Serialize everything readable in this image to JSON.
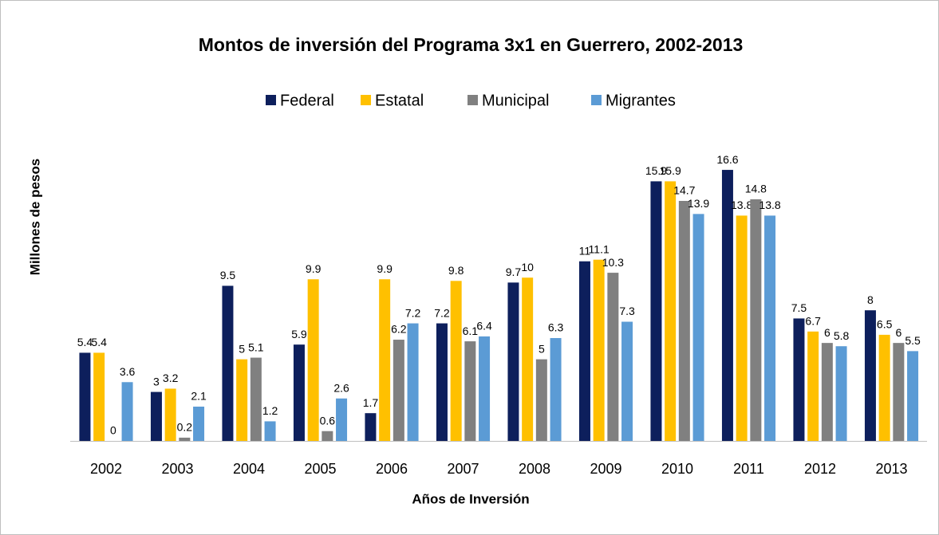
{
  "chart_data": {
    "type": "bar",
    "title": "Montos de inversión del Programa 3x1 en Guerrero, 2002-2013",
    "x_label": "Años de Inversión",
    "y_label": "Millones de pesos",
    "categories": [
      "2002",
      "2003",
      "2004",
      "2005",
      "2006",
      "2007",
      "2008",
      "2009",
      "2010",
      "2011",
      "2012",
      "2013"
    ],
    "series": [
      {
        "name": "Federal",
        "color": "#0d1f5c",
        "values": [
          5.4,
          3,
          9.5,
          5.9,
          1.7,
          7.2,
          9.7,
          11,
          15.9,
          16.6,
          7.5,
          8
        ]
      },
      {
        "name": "Estatal",
        "color": "#ffc000",
        "values": [
          5.4,
          3.2,
          5,
          9.9,
          9.9,
          9.8,
          10,
          11.1,
          15.9,
          13.8,
          6.7,
          6.5
        ]
      },
      {
        "name": "Municipal",
        "color": "#808080",
        "values": [
          0,
          0.2,
          5.1,
          0.6,
          6.2,
          6.1,
          5,
          10.3,
          14.7,
          14.8,
          6,
          6
        ]
      },
      {
        "name": "Migrantes",
        "color": "#5b9bd5",
        "values": [
          3.6,
          2.1,
          1.2,
          2.6,
          7.2,
          6.4,
          6.3,
          7.3,
          13.9,
          13.8,
          5.8,
          5.5
        ]
      }
    ],
    "ylim": [
      0,
      18
    ],
    "legend": "top"
  }
}
